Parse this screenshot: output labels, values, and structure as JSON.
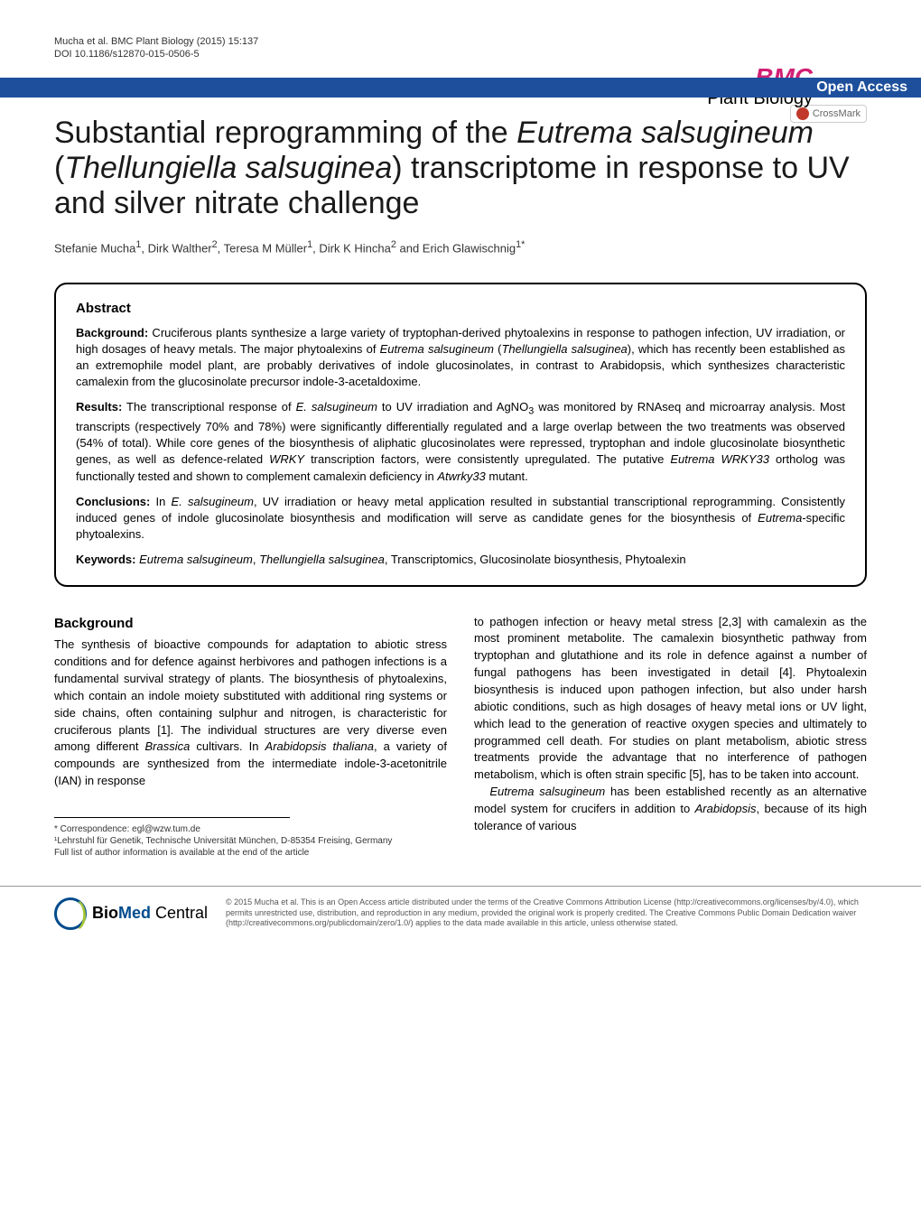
{
  "header": {
    "citation": "Mucha et al. BMC Plant Biology  (2015) 15:137",
    "doi": "DOI 10.1186/s12870-015-0506-5",
    "logo_prefix": "BMC",
    "logo_sub": "Plant Biology"
  },
  "bar": {
    "open_access": "Open Access",
    "crossmark": "CrossMark"
  },
  "article": {
    "title_html": "Substantial reprogramming of the <em>Eutrema salsugineum</em> (<em>Thellungiella salsuginea</em>) transcriptome in response to UV and silver nitrate challenge",
    "authors_html": "Stefanie Mucha<sup>1</sup>, Dirk Walther<sup>2</sup>, Teresa M Müller<sup>1</sup>, Dirk K Hincha<sup>2</sup> and Erich Glawischnig<sup>1*</sup>"
  },
  "abstract": {
    "heading": "Abstract",
    "background_label": "Background:",
    "background_text": " Cruciferous plants synthesize a large variety of tryptophan-derived phytoalexins in response to pathogen infection, UV irradiation, or high dosages of heavy metals. The major phytoalexins of <em>Eutrema salsugineum</em> (<em>Thellungiella salsuginea</em>), which has recently been established as an extremophile model plant, are probably derivatives of indole glucosinolates, in contrast to Arabidopsis, which synthesizes characteristic camalexin from the glucosinolate precursor indole-3-acetaldoxime.",
    "results_label": "Results:",
    "results_text": " The transcriptional response of <em>E. salsugineum</em> to UV irradiation and AgNO<sub>3</sub> was monitored by RNAseq and microarray analysis. Most transcripts (respectively 70% and 78%) were significantly differentially regulated and a large overlap between the two treatments was observed (54% of total). While core genes of the biosynthesis of aliphatic glucosinolates were repressed, tryptophan and indole glucosinolate biosynthetic genes, as well as defence-related <em>WRKY</em> transcription factors, were consistently upregulated. The putative <em>Eutrema WRKY33</em> ortholog was functionally tested and shown to complement camalexin deficiency in <em>Atwrky33</em> mutant.",
    "conclusions_label": "Conclusions:",
    "conclusions_text": " In <em>E. salsugineum</em>, UV irradiation or heavy metal application resulted in substantial transcriptional reprogramming. Consistently induced genes of indole glucosinolate biosynthesis and modification will serve as candidate genes for the biosynthesis of <em>Eutrema</em>-specific phytoalexins.",
    "keywords_label": "Keywords:",
    "keywords_text": " <em>Eutrema salsugineum</em>, <em>Thellungiella salsuginea</em>, Transcriptomics, Glucosinolate biosynthesis, Phytoalexin"
  },
  "body": {
    "background_heading": "Background",
    "col1_html": "The synthesis of bioactive compounds for adaptation to abiotic stress conditions and for defence against herbivores and pathogen infections is a fundamental survival strategy of plants. The biosynthesis of phytoalexins, which contain an indole moiety substituted with additional ring systems or side chains, often containing sulphur and nitrogen, is characteristic for cruciferous plants [1]. The individual structures are very diverse even among different <em>Brassica</em> cultivars. In <em>Arabidopsis thaliana</em>, a variety of compounds are synthesized from the intermediate indole-3-acetonitrile (IAN) in response",
    "col2_html": "to pathogen infection or heavy metal stress [2,3] with camalexin as the most prominent metabolite. The camalexin biosynthetic pathway from tryptophan and glutathione and its role in defence against a number of fungal pathogens has been investigated in detail [4]. Phytoalexin biosynthesis is induced upon pathogen infection, but also under harsh abiotic conditions, such as high dosages of heavy metal ions or UV light, which lead to the generation of reactive oxygen species and ultimately to programmed cell death. For studies on plant metabolism, abiotic stress treatments provide the advantage that no interference of pathogen metabolism, which is often strain specific [5], has to be taken into account.<br>&nbsp;&nbsp;&nbsp;<em>Eutrema salsugineum</em> has been established recently as an alternative model system for crucifers in addition to <em>Arabidopsis</em>, because of its high tolerance of various"
  },
  "footnotes": {
    "correspondence": "* Correspondence: egl@wzw.tum.de",
    "affiliation": "¹Lehrstuhl für Genetik, Technische Universität München, D-85354 Freising, Germany",
    "fulllist": "Full list of author information is available at the end of the article"
  },
  "footer": {
    "biomed_bio": "Bio",
    "biomed_med": "Med",
    "biomed_central": " Central",
    "license": "© 2015 Mucha et al. This is an Open Access article distributed under the terms of the Creative Commons Attribution License (http://creativecommons.org/licenses/by/4.0), which permits unrestricted use, distribution, and reproduction in any medium, provided the original work is properly credited. The Creative Commons Public Domain Dedication waiver (http://creativecommons.org/publicdomain/zero/1.0/) applies to the data made available in this article, unless otherwise stated."
  },
  "colors": {
    "blue_bar": "#1d4f9c",
    "bmc_pink": "#d21f75",
    "crossmark_red": "#c0392b",
    "biomed_blue": "#004b8d",
    "biomed_green": "#a7c539"
  }
}
